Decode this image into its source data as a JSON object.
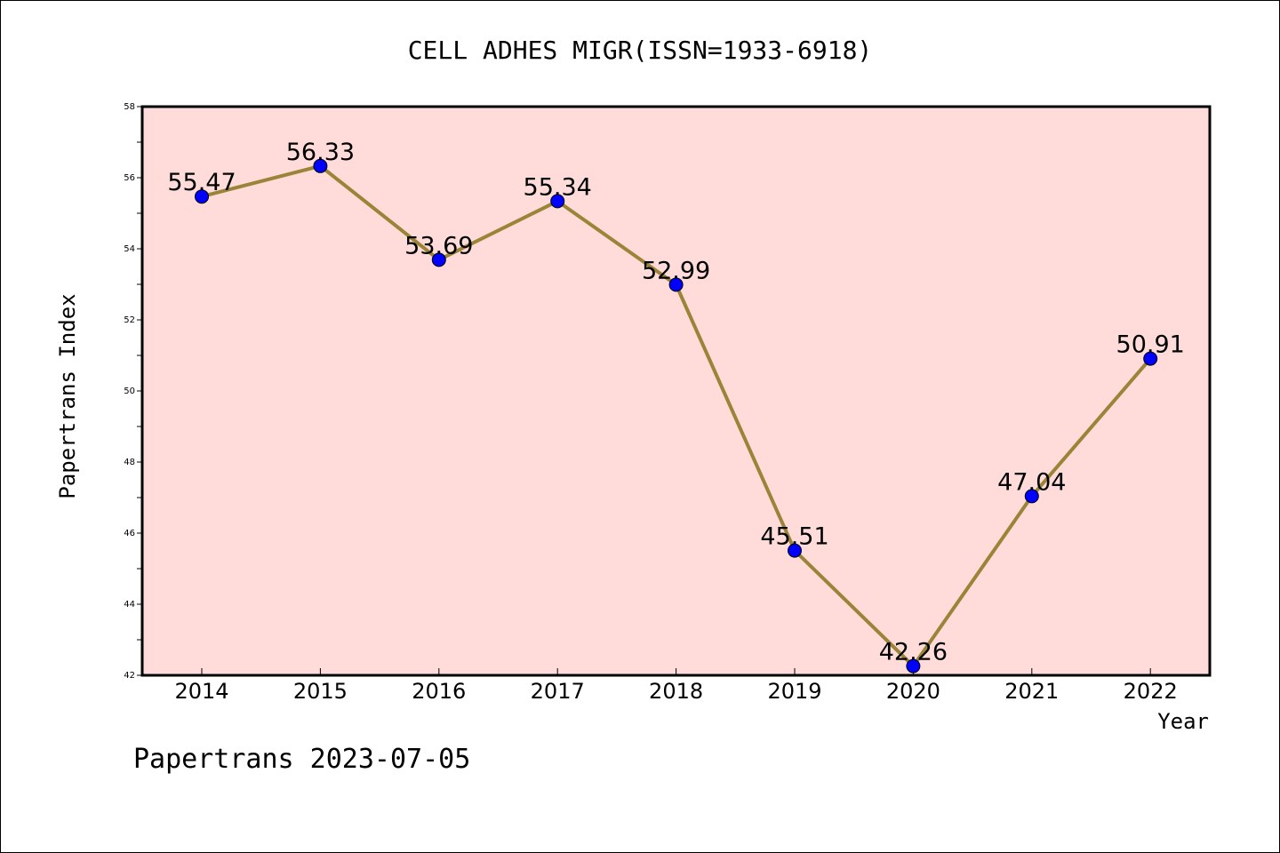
{
  "chart_data": {
    "type": "line",
    "title": "CELL ADHES MIGR(ISSN=1933-6918)",
    "xlabel": "Year",
    "ylabel": "Papertrans Index",
    "footer": "Papertrans 2023-07-05",
    "categories": [
      "2014",
      "2015",
      "2016",
      "2017",
      "2018",
      "2019",
      "2020",
      "2021",
      "2022"
    ],
    "series": [
      {
        "values": [
          55.47,
          56.33,
          53.69,
          55.34,
          52.99,
          45.51,
          42.26,
          47.04,
          50.91
        ],
        "labels": [
          "55.47",
          "56.33",
          "53.69",
          "55.34",
          "52.99",
          "45.51",
          "42.26",
          "47.04",
          "50.91"
        ]
      }
    ],
    "ylim": [
      42,
      58
    ],
    "yticks": [
      42,
      44,
      46,
      48,
      50,
      52,
      54,
      56,
      58
    ],
    "grid": false,
    "colors": {
      "plot_background": "#FFDCDA",
      "line": "#9A8437",
      "marker": "#0000FF"
    }
  }
}
